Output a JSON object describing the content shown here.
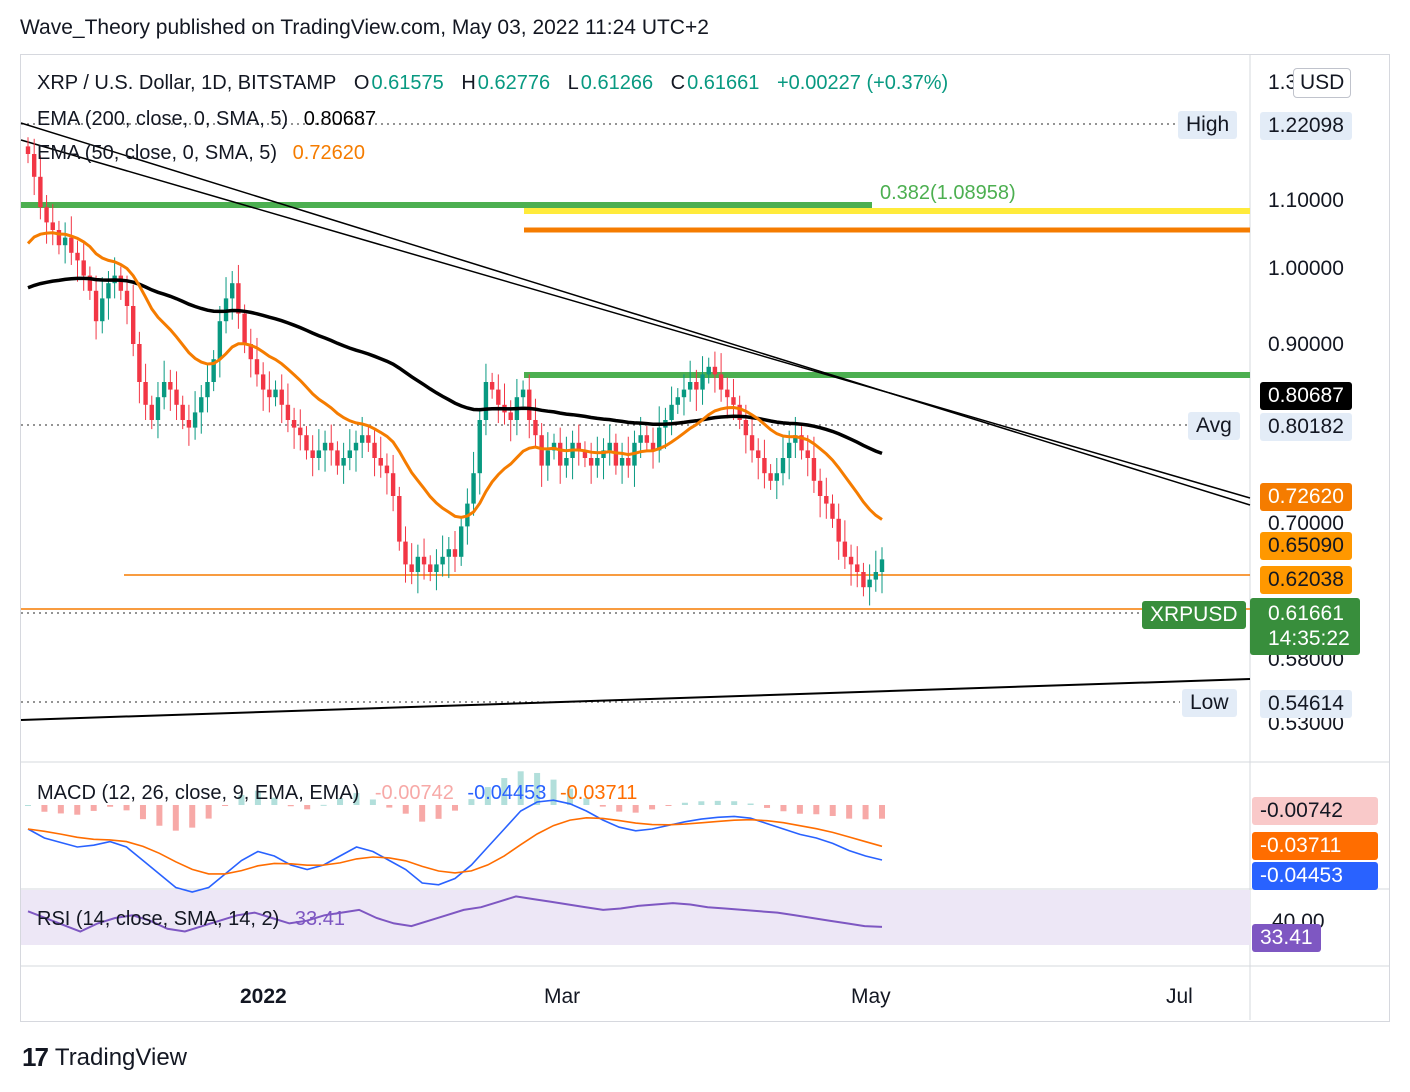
{
  "header": {
    "publisher_line": "Wave_Theory published on TradingView.com, May 03, 2022 11:24 UTC+2"
  },
  "footer": {
    "brand": "TradingView",
    "brand_mark": "17"
  },
  "currency_button": {
    "label": "USD"
  },
  "legend": {
    "symbol": "XRP / U.S. Dollar, 1D, BITSTAMP",
    "o_label": "O",
    "o_value": "0.61575",
    "h_label": "H",
    "h_value": "0.62776",
    "l_label": "L",
    "l_value": "0.61266",
    "c_label": "C",
    "c_value": "0.61661",
    "change": "+0.00227 (+0.37%)",
    "ema200_label": "EMA (200, close, 0, SMA, 5)",
    "ema200_value": "0.80687",
    "ema50_label": "EMA (50, close, 0, SMA, 5)",
    "ema50_value": "0.72620",
    "fib_label": "0.382(1.08958)",
    "macd_label": "MACD (12, 26, close, 9, EMA, EMA)",
    "macd_hist": "-0.00742",
    "macd_line": "-0.04453",
    "macd_signal": "-0.03711",
    "rsi_label": "RSI (14, close, SMA, 14, 2)",
    "rsi_value": "33.41"
  },
  "price_tags": {
    "high_label": "High",
    "high_value": "1.22098",
    "avg_label": "Avg",
    "avg_value": "0.80182",
    "low_label": "Low",
    "low_value": "0.54614",
    "ema200_tag": "0.80687",
    "ema50_tag": "0.72620",
    "level_a": "0.65090",
    "level_b": "0.62038",
    "symbol_tag": "XRPUSD",
    "last_price": "0.61661",
    "countdown": "14:35:22",
    "macd_hist_tag": "-0.00742",
    "macd_signal_tag": "-0.03711",
    "macd_line_tag": "-0.04453",
    "rsi_tag": "33.41"
  },
  "colors": {
    "up": "#089981",
    "down": "#f23645",
    "ema200": "#000000",
    "ema50": "#f57c00",
    "fib_green": "#4caf50",
    "fib_yellow": "#ffeb3b",
    "orange_line": "#f57c00",
    "macd": "#2962ff",
    "signal": "#ff6d00",
    "rsi": "#7e57c2"
  },
  "chart_data": {
    "type": "candlestick",
    "symbol": "XRP / U.S. Dollar, 1D, BITSTAMP",
    "price_axis": {
      "ticks": [
        "1.10000",
        "1.00000",
        "0.90000",
        "0.70000",
        "0.58000",
        "0.53000"
      ],
      "partial_top_tick": "1.30000"
    },
    "time_axis": {
      "ticks": [
        "2022",
        "Mar",
        "May",
        "Jul"
      ]
    },
    "ohlc_last": {
      "open": 0.61575,
      "high": 0.62776,
      "low": 0.61266,
      "close": 0.61661,
      "change": 0.00227,
      "change_pct": 0.37
    },
    "stats": {
      "high": 1.22098,
      "avg": 0.80182,
      "low": 0.54614
    },
    "ema200_last": 0.80687,
    "ema50_last": 0.7262,
    "horizontal_levels": [
      1.08958,
      1.055,
      0.856,
      0.6509,
      0.62038
    ],
    "fib_level": {
      "ratio": 0.382,
      "price": 1.08958
    },
    "rsi_axis_tick": "40.00",
    "macd_last": {
      "macd": -0.04453,
      "signal": -0.03711,
      "histogram": -0.00742
    },
    "rsi_last": 33.41,
    "closes": [
      1.15,
      1.12,
      1.08,
      1.06,
      1.05,
      1.03,
      1.04,
      1.02,
      1.01,
      0.99,
      0.97,
      0.93,
      0.96,
      0.98,
      0.99,
      0.97,
      0.95,
      0.9,
      0.85,
      0.82,
      0.8,
      0.83,
      0.85,
      0.84,
      0.82,
      0.8,
      0.79,
      0.81,
      0.83,
      0.85,
      0.88,
      0.93,
      0.96,
      0.98,
      0.94,
      0.9,
      0.88,
      0.86,
      0.84,
      0.83,
      0.84,
      0.82,
      0.8,
      0.79,
      0.78,
      0.76,
      0.75,
      0.76,
      0.77,
      0.76,
      0.74,
      0.75,
      0.76,
      0.77,
      0.78,
      0.77,
      0.75,
      0.74,
      0.73,
      0.7,
      0.64,
      0.61,
      0.6,
      0.62,
      0.61,
      0.6,
      0.61,
      0.62,
      0.63,
      0.62,
      0.66,
      0.69,
      0.73,
      0.8,
      0.85,
      0.84,
      0.82,
      0.81,
      0.8,
      0.83,
      0.84,
      0.8,
      0.78,
      0.74,
      0.76,
      0.77,
      0.74,
      0.75,
      0.77,
      0.76,
      0.75,
      0.74,
      0.75,
      0.76,
      0.77,
      0.74,
      0.75,
      0.74,
      0.77,
      0.78,
      0.77,
      0.76,
      0.79,
      0.8,
      0.82,
      0.83,
      0.84,
      0.85,
      0.84,
      0.86,
      0.87,
      0.86,
      0.84,
      0.83,
      0.82,
      0.8,
      0.78,
      0.76,
      0.75,
      0.73,
      0.72,
      0.73,
      0.75,
      0.77,
      0.78,
      0.76,
      0.75,
      0.72,
      0.7,
      0.69,
      0.67,
      0.64,
      0.62,
      0.61,
      0.6,
      0.58,
      0.59,
      0.6,
      0.6166
    ],
    "macd_series": [
      -0.01,
      -0.02,
      -0.025,
      -0.03,
      -0.028,
      -0.024,
      -0.03,
      -0.045,
      -0.06,
      -0.075,
      -0.08,
      -0.075,
      -0.06,
      -0.045,
      -0.035,
      -0.04,
      -0.05,
      -0.055,
      -0.05,
      -0.04,
      -0.03,
      -0.035,
      -0.045,
      -0.055,
      -0.07,
      -0.072,
      -0.065,
      -0.05,
      -0.03,
      -0.01,
      0.01,
      0.02,
      0.022,
      0.018,
      0.01,
      0.0,
      -0.008,
      -0.012,
      -0.01,
      -0.006,
      -0.002,
      0.001,
      0.003,
      0.004,
      0.002,
      -0.004,
      -0.01,
      -0.016,
      -0.02,
      -0.026,
      -0.034,
      -0.04,
      -0.04445
    ],
    "rsi_series": [
      45,
      40,
      35,
      30,
      36,
      40,
      42,
      38,
      32,
      30,
      34,
      38,
      42,
      44,
      40,
      36,
      38,
      42,
      44,
      46,
      40,
      36,
      34,
      38,
      42,
      46,
      48,
      52,
      56,
      54,
      52,
      50,
      48,
      46,
      47,
      49,
      50,
      51,
      50,
      48,
      47,
      46,
      45,
      44,
      42,
      40,
      38,
      36,
      34,
      33.41
    ]
  }
}
